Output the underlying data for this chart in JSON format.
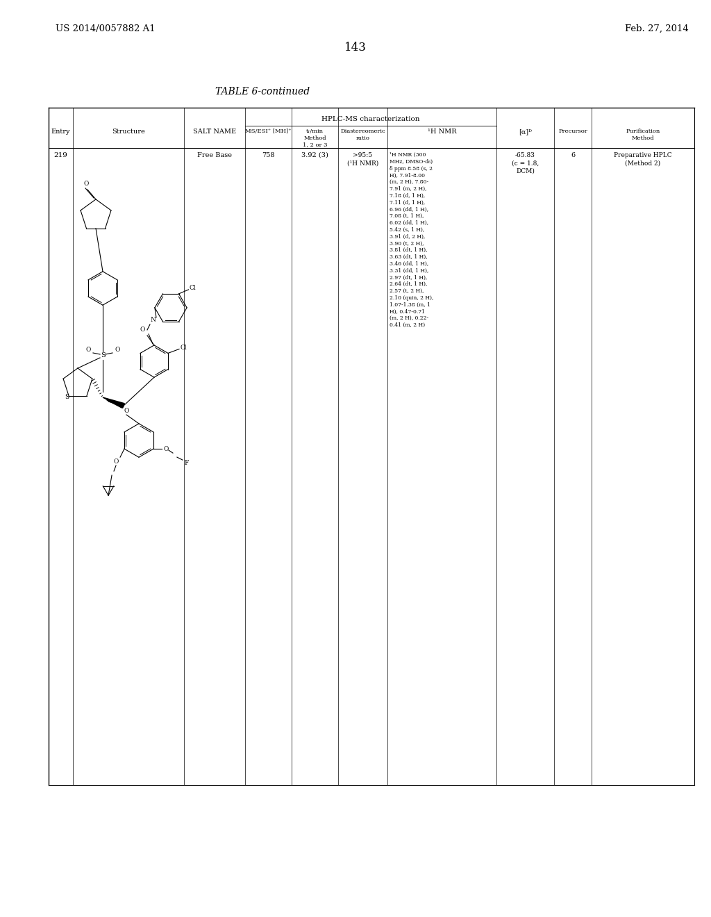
{
  "page_number": "143",
  "patent_number": "US 2014/0057882 A1",
  "date": "Feb. 27, 2014",
  "table_title": "TABLE 6-continued",
  "background_color": "#ffffff",
  "text_color": "#000000",
  "hplc_header": "HPLC-MS characterization",
  "col_headers": {
    "entry": "Entry",
    "structure": "Structure",
    "salt_name": "SALT NAME",
    "ms_esi": "MS/ESI⁺ [MH]⁺",
    "tr_min": "tᵣ/min\nMethod\n1, 2 or 3",
    "diastereomeric": "Diastereomeric\nratio",
    "nmr": "¹H NMR",
    "alpha_d": "[α]ᴰ",
    "precursor": "Precursor",
    "purification": "Purification\nMethod"
  },
  "row": {
    "entry": "219",
    "salt_name": "Free Base",
    "ms_esi": "758",
    "tr_min": "3.92 (3)",
    "diastereomeric": ">95:5\n(¹H NMR)",
    "nmr_lines": [
      "¹H NMR (300",
      "MHz, DMSO-d₆)",
      "δ ppm 8.58 (s, 2",
      "H), 7.91-8.00",
      "(m, 2 H), 7.80-",
      "7.91 (m, 2 H),",
      "7.18 (d, 1 H),",
      "7.11 (d, 1 H),",
      "6.96 (dd, 1 H),",
      "7.08 (t, 1 H),",
      "6.02 (dd, 1 H),",
      "5.42 (s, 1 H),",
      "3.91 (d, 2 H),",
      "3.90 (t, 2 H),",
      "3.81 (dt, 1 H),",
      "3.63 (dt, 1 H),",
      "3.46 (dd, 1 H),",
      "3.31 (dd, 1 H),",
      "2.97 (dt, 1 H),",
      "2.64 (dt, 1 H),",
      "2.57 (t, 2 H),",
      "2.10 (quin, 2 H),",
      "1.07-1.38 (m, 1",
      "H), 0.47-0.71",
      "(m, 2 H), 0.22-",
      "0.41 (m, 2 H)"
    ],
    "alpha_d": "-65.83\n(c = 1.8,\nDCM)",
    "precursor": "6",
    "purification": "Preparative HPLC\n(Method 2)"
  }
}
